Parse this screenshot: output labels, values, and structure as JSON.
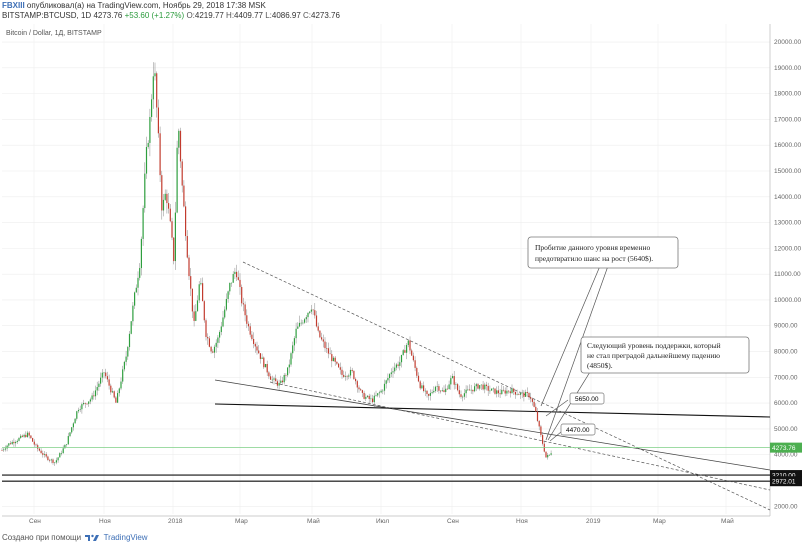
{
  "header": {
    "line1_author": "FBXIII",
    "line1_rest": " опубликовал(а) на TradingView.com, Ноябрь 29, 2018 17:38 MSK",
    "symbol": "BITSTAMP:BTCUSD, 1D",
    "last": "4273.76",
    "change": "+53.60 (+1.27%)",
    "o_label": "O:",
    "o": "4219.77",
    "h_label": "H:",
    "h": "4409.77",
    "l_label": "L:",
    "l": "4086.97",
    "c_label": "C:",
    "c": "4273.76"
  },
  "footer": {
    "created_with": "Создано при помощи",
    "brand": "TradingView"
  },
  "colors": {
    "up": "#2e9e3e",
    "down": "#c23b2e",
    "grid": "#eeeeee",
    "trendline": "#333333",
    "dashed": "#555555",
    "last_price_line": "#7fcf86"
  },
  "chart_data": {
    "type": "candlestick",
    "title": "Bitcoin / Dollar, 1Д, BITSTAMP",
    "ylim": [
      1700,
      20700
    ],
    "y_ticks": [
      2000,
      3000,
      4000,
      5000,
      6000,
      7000,
      8000,
      9000,
      10000,
      11000,
      12000,
      13000,
      14000,
      15000,
      16000,
      17000,
      18000,
      19000,
      20000
    ],
    "x_ticks": [
      "Сен",
      "Ноя",
      "2018",
      "Мар",
      "Май",
      "Июл",
      "Сен",
      "Ноя",
      "2019",
      "Мар",
      "Май"
    ],
    "price_path": [
      [
        0,
        4100
      ],
      [
        8,
        4400
      ],
      [
        18,
        4600
      ],
      [
        28,
        4800
      ],
      [
        36,
        4300
      ],
      [
        46,
        3900
      ],
      [
        55,
        3700
      ],
      [
        66,
        4400
      ],
      [
        78,
        5800
      ],
      [
        92,
        6200
      ],
      [
        104,
        7200
      ],
      [
        116,
        6000
      ],
      [
        126,
        7800
      ],
      [
        134,
        10000
      ],
      [
        140,
        11500
      ],
      [
        146,
        15500
      ],
      [
        150,
        17000
      ],
      [
        154,
        19300
      ],
      [
        158,
        16500
      ],
      [
        162,
        13500
      ],
      [
        166,
        14200
      ],
      [
        170,
        13000
      ],
      [
        174,
        11500
      ],
      [
        178,
        17100
      ],
      [
        182,
        14500
      ],
      [
        188,
        11500
      ],
      [
        194,
        9000
      ],
      [
        200,
        10800
      ],
      [
        206,
        8700
      ],
      [
        212,
        8000
      ],
      [
        218,
        8500
      ],
      [
        224,
        9500
      ],
      [
        230,
        10600
      ],
      [
        236,
        11200
      ],
      [
        242,
        9900
      ],
      [
        248,
        9000
      ],
      [
        256,
        8200
      ],
      [
        264,
        7500
      ],
      [
        272,
        6900
      ],
      [
        280,
        6700
      ],
      [
        288,
        7300
      ],
      [
        296,
        8800
      ],
      [
        304,
        9300
      ],
      [
        312,
        9800
      ],
      [
        318,
        8700
      ],
      [
        326,
        8100
      ],
      [
        334,
        7600
      ],
      [
        342,
        7100
      ],
      [
        352,
        7200
      ],
      [
        362,
        6300
      ],
      [
        372,
        6100
      ],
      [
        382,
        6500
      ],
      [
        392,
        7300
      ],
      [
        400,
        7600
      ],
      [
        408,
        8400
      ],
      [
        414,
        7500
      ],
      [
        420,
        6700
      ],
      [
        428,
        6200
      ],
      [
        436,
        6700
      ],
      [
        444,
        6400
      ],
      [
        452,
        7000
      ],
      [
        460,
        6300
      ],
      [
        470,
        6500
      ],
      [
        480,
        6700
      ],
      [
        490,
        6500
      ],
      [
        500,
        6400
      ],
      [
        510,
        6500
      ],
      [
        520,
        6350
      ],
      [
        530,
        6300
      ],
      [
        536,
        5600
      ],
      [
        541,
        4700
      ],
      [
        546,
        3900
      ],
      [
        550,
        4000
      ],
      [
        553,
        4273.76
      ]
    ],
    "last_price": 4273.76,
    "levels": [
      3210,
      2972.01
    ],
    "price_tags": [
      {
        "text": "4273.76",
        "value": 4273.76,
        "fill": "#4caf50",
        "color": "#ffffff"
      },
      {
        "text": "3210.00",
        "value": 3210,
        "fill": "#111111",
        "color": "#ffffff"
      },
      {
        "text": "2972.01",
        "value": 2972.01,
        "fill": "#111111",
        "color": "#ffffff"
      }
    ],
    "callouts": [
      {
        "text": "5650.00"
      },
      {
        "text": "4470.00"
      }
    ],
    "annotations": [
      {
        "lines": [
          "Пробитие данного уровня временно",
          "предотвратило шанс на рост (5640$)."
        ]
      },
      {
        "lines": [
          "Следующий уровень поддержки, который",
          "не стал преградой дальнейшему падению",
          "(4850$)."
        ]
      }
    ]
  }
}
